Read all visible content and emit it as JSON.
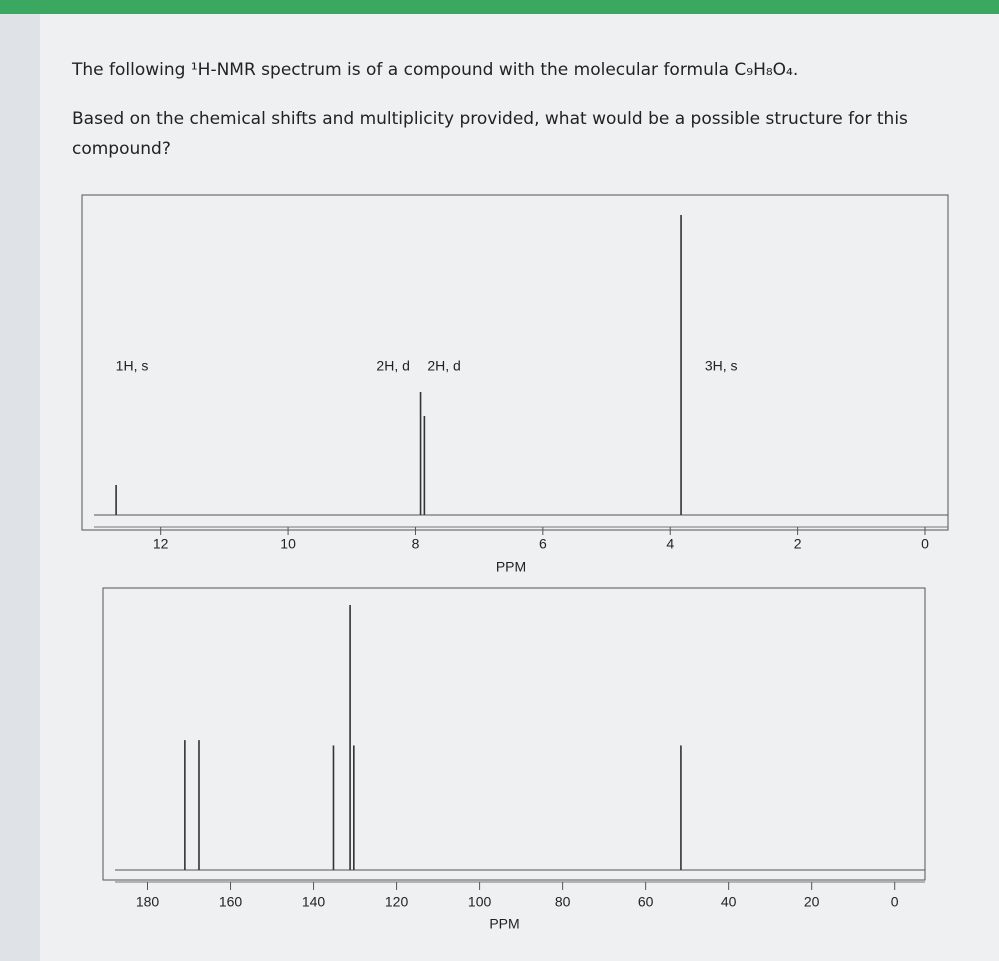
{
  "question": {
    "line1": "The following ¹H-NMR spectrum is of a compound with the molecular formula C₉H₈O₄.",
    "line2": "Based on the chemical shifts and multiplicity provided, what would be a possible structure for this compound?"
  },
  "chart_data": [
    {
      "type": "stem",
      "xlabel": "PPM",
      "xlim": [
        13.0,
        0
      ],
      "xticks": [
        12,
        10,
        8,
        6,
        4,
        2,
        0
      ],
      "ylim": [
        0,
        100
      ],
      "color": "#333333",
      "x": [
        12.7,
        7.92,
        7.86,
        3.83
      ],
      "values": [
        10,
        41,
        33,
        100
      ],
      "annotations": [
        {
          "text": "1H, s",
          "x": 12.45
        },
        {
          "text": "2H, d",
          "x": 8.35
        },
        {
          "text": "2H, d",
          "x": 7.55
        },
        {
          "text": "3H, s",
          "x": 3.2
        }
      ]
    },
    {
      "type": "stem",
      "xlabel": "PPM",
      "xlim": [
        190,
        -2
      ],
      "xticks": [
        180,
        160,
        140,
        120,
        100,
        80,
        60,
        40,
        20,
        0
      ],
      "ylim": [
        0,
        100
      ],
      "color": "#333333",
      "x": [
        171.0,
        167.6,
        135.2,
        131.2,
        130.3,
        51.5
      ],
      "values": [
        49,
        49,
        47,
        100,
        47,
        47
      ]
    }
  ]
}
